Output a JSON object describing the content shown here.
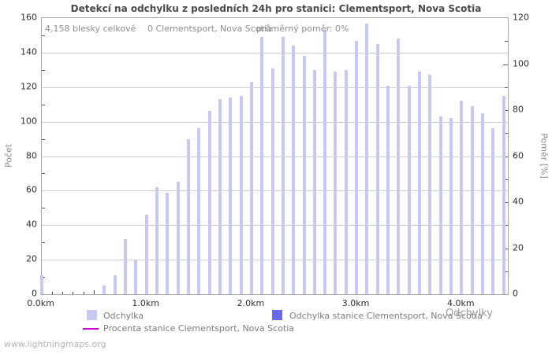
{
  "page": {
    "footer": "www.lightningmaps.org"
  },
  "annotations": {
    "total": "4,158 blesky celkově",
    "station": "0 Clementsport, Nova Scotia",
    "ratio": "průměrný poměr: 0%"
  },
  "axes": {
    "left_title": "Počet",
    "right_title": "Poměr [%]",
    "x_title": "Odchylky"
  },
  "legend": {
    "items": [
      {
        "label": "Odchylka",
        "shape": "square",
        "color": "#c7c9f1"
      },
      {
        "label": "Odchylka stanice Clementsport, Nova Scotia",
        "shape": "square",
        "color": "#6969f0"
      },
      {
        "label": "Procenta stanice Clementsport, Nova Scotia",
        "shape": "line",
        "color": "#cc00cc"
      }
    ]
  },
  "chart_data": {
    "type": "bar",
    "title": "Detekcí na odchylku z posledních 24h pro stanici: Clementsport, Nova Scotia",
    "xlabel": "Odchylky",
    "ylabel_left": "Počet",
    "ylabel_right": "Poměr [%]",
    "x_unit": "km",
    "x_start_km": 0.0,
    "x_step_km": 0.1,
    "n_bins": 45,
    "ylim_left": [
      0,
      160
    ],
    "ylim_right": [
      0,
      120
    ],
    "grid": true,
    "y_ticks_left": [
      "0",
      "20",
      "40",
      "60",
      "80",
      "100",
      "120",
      "140",
      "160"
    ],
    "y_ticks_right": [
      "0",
      "20",
      "40",
      "60",
      "80",
      "100",
      "120"
    ],
    "x_ticks": [
      {
        "label": "0.0km",
        "km": 0.0
      },
      {
        "label": "1.0km",
        "km": 1.0
      },
      {
        "label": "2.0km",
        "km": 2.0
      },
      {
        "label": "3.0km",
        "km": 3.0
      },
      {
        "label": "4.0km",
        "km": 4.0
      }
    ],
    "series": [
      {
        "name": "Odchylka",
        "color": "#c7c9f1",
        "values": [
          11,
          0,
          0,
          0,
          0,
          0,
          5,
          11,
          32,
          20,
          46,
          62,
          59,
          65,
          90,
          96,
          106,
          113,
          114,
          115,
          123,
          149,
          131,
          149,
          144,
          138,
          130,
          153,
          129,
          130,
          147,
          157,
          145,
          121,
          148,
          121,
          129,
          127,
          103,
          102,
          112,
          109,
          105,
          96,
          115
        ]
      },
      {
        "name": "Odchylka stanice Clementsport, Nova Scotia",
        "color": "#6969f0",
        "values": [
          0,
          0,
          0,
          0,
          0,
          0,
          0,
          0,
          0,
          0,
          0,
          0,
          0,
          0,
          0,
          0,
          0,
          0,
          0,
          0,
          0,
          0,
          0,
          0,
          0,
          0,
          0,
          0,
          0,
          0,
          0,
          0,
          0,
          0,
          0,
          0,
          0,
          0,
          0,
          0,
          0,
          0,
          0,
          0,
          0
        ]
      },
      {
        "name": "Procenta stanice Clementsport, Nova Scotia",
        "color": "#cc00cc",
        "type": "line",
        "values": [
          0,
          0,
          0,
          0,
          0,
          0,
          0,
          0,
          0,
          0,
          0,
          0,
          0,
          0,
          0,
          0,
          0,
          0,
          0,
          0,
          0,
          0,
          0,
          0,
          0,
          0,
          0,
          0,
          0,
          0,
          0,
          0,
          0,
          0,
          0,
          0,
          0,
          0,
          0,
          0,
          0,
          0,
          0,
          0,
          0
        ]
      }
    ]
  }
}
